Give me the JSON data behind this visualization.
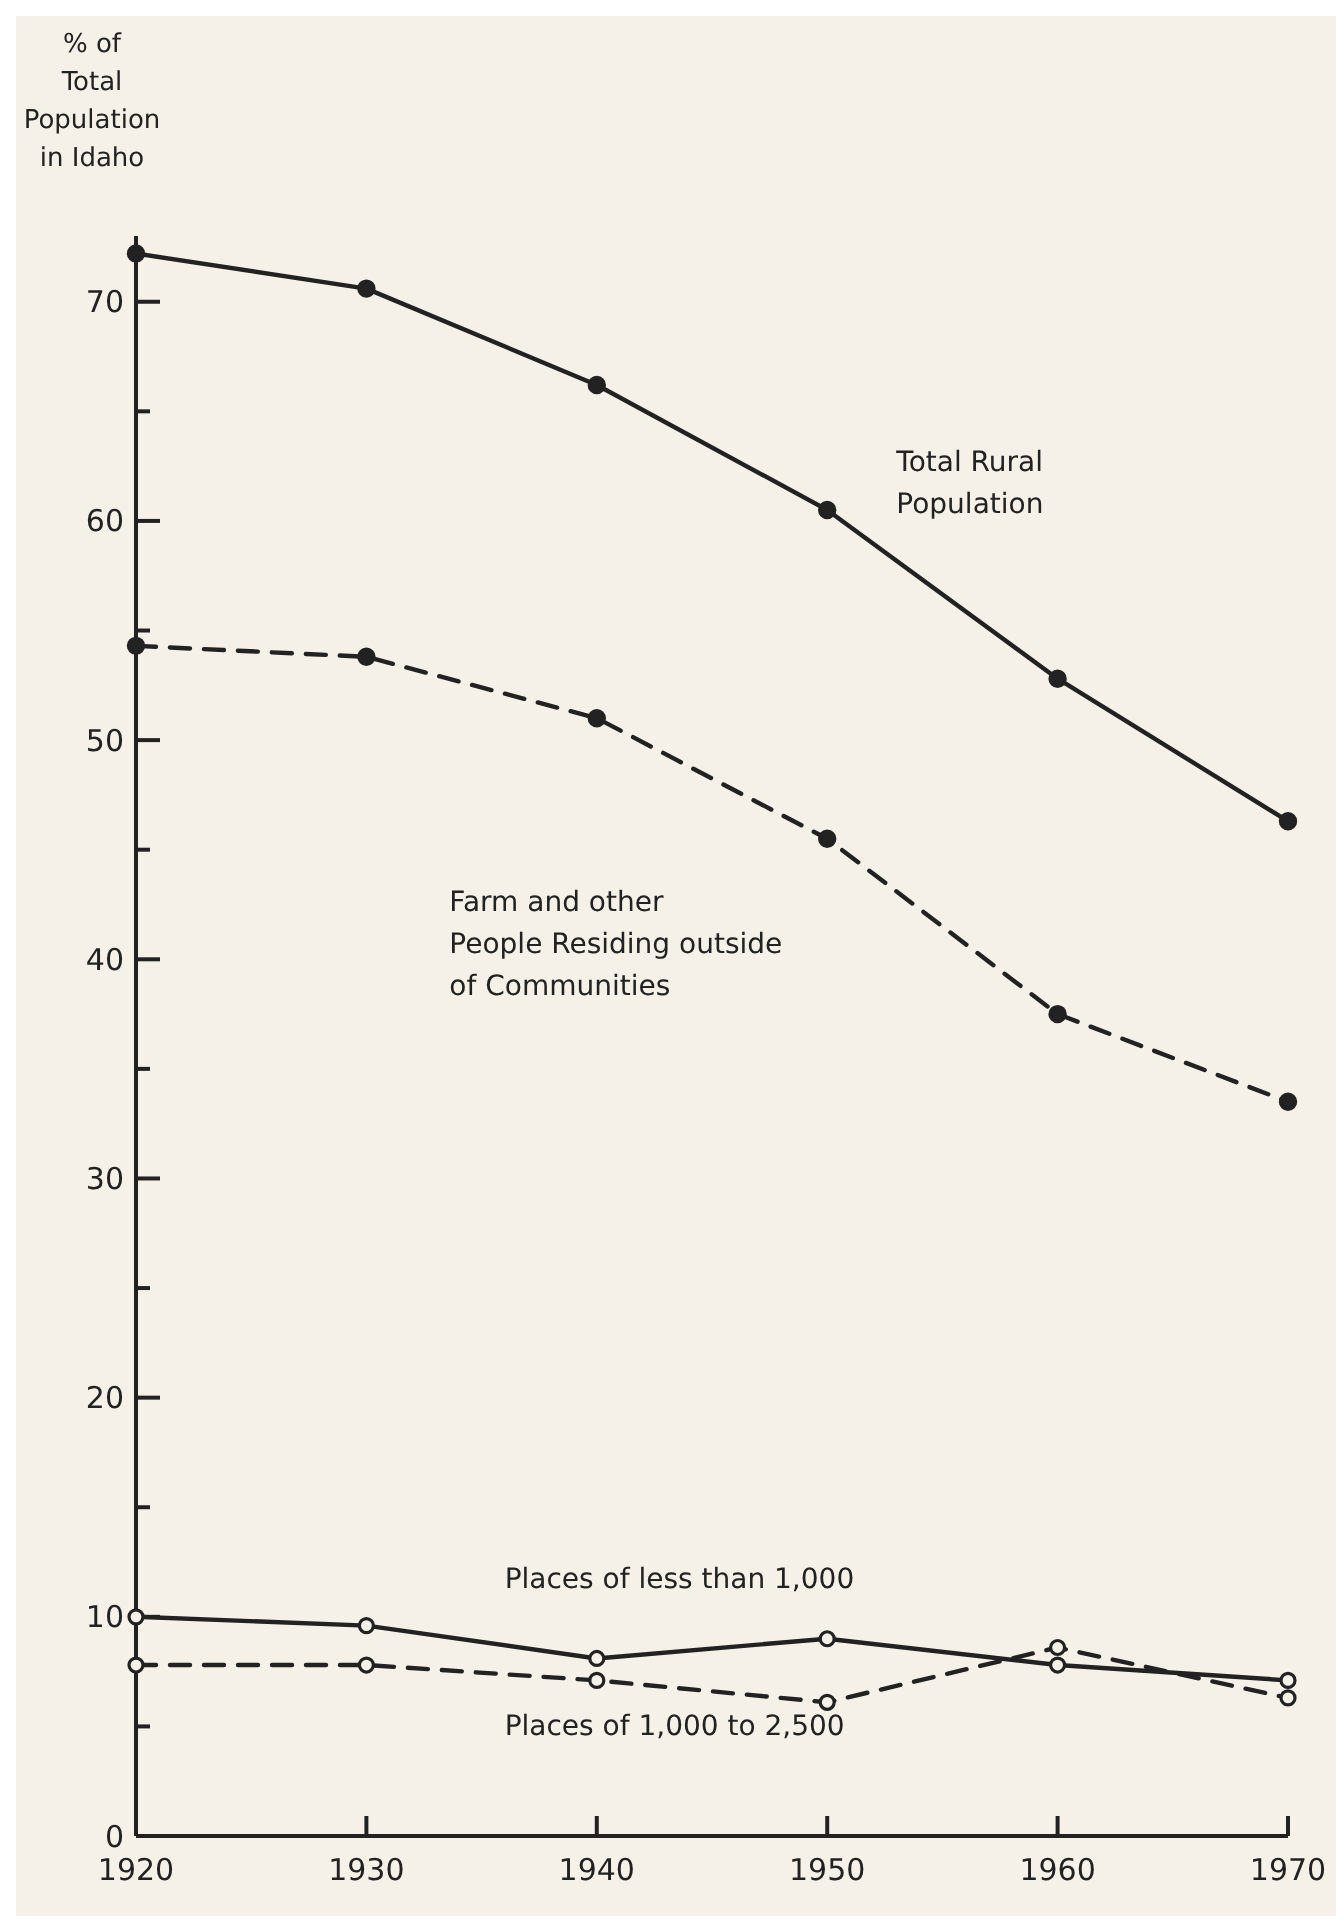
{
  "chart_data": {
    "type": "line",
    "ylabel": "% of Total Population in Idaho",
    "x": [
      1920,
      1930,
      1940,
      1950,
      1960,
      1970
    ],
    "xlim": [
      1920,
      1970
    ],
    "xticks": [
      1920,
      1930,
      1940,
      1950,
      1960,
      1970
    ],
    "ylim": [
      0,
      73
    ],
    "yticks": [
      0,
      {
        "value": 5,
        "label": null
      },
      10,
      {
        "value": 15,
        "label": null
      },
      20,
      {
        "value": 25,
        "label": null
      },
      30,
      {
        "value": 35,
        "label": null
      },
      40,
      {
        "value": 45,
        "label": null
      },
      50,
      {
        "value": 55,
        "label": null
      },
      60,
      {
        "value": 65,
        "label": null
      },
      70
    ],
    "grid": false,
    "marker": "circle",
    "series": [
      {
        "name": "Total Rural Population",
        "color": "#222222",
        "line_style": "solid",
        "values": [
          72.2,
          70.6,
          66.2,
          60.5,
          52.8,
          46.3
        ]
      },
      {
        "name": "Farm and other People Residing outside of Communities",
        "color": "#222222",
        "line_style": "dashed",
        "values": [
          54.3,
          53.8,
          51.0,
          45.5,
          37.5,
          33.5
        ]
      },
      {
        "name": "Places of less than 1,000",
        "color": "#222222",
        "line_style": "solid",
        "values": [
          10.0,
          9.6,
          8.1,
          9.0,
          7.8,
          7.1
        ]
      },
      {
        "name": "Places of 1,000 to 2,500",
        "color": "#222222",
        "line_style": "dashed",
        "values": [
          7.8,
          7.8,
          7.1,
          6.1,
          8.6,
          6.3
        ]
      }
    ]
  }
}
